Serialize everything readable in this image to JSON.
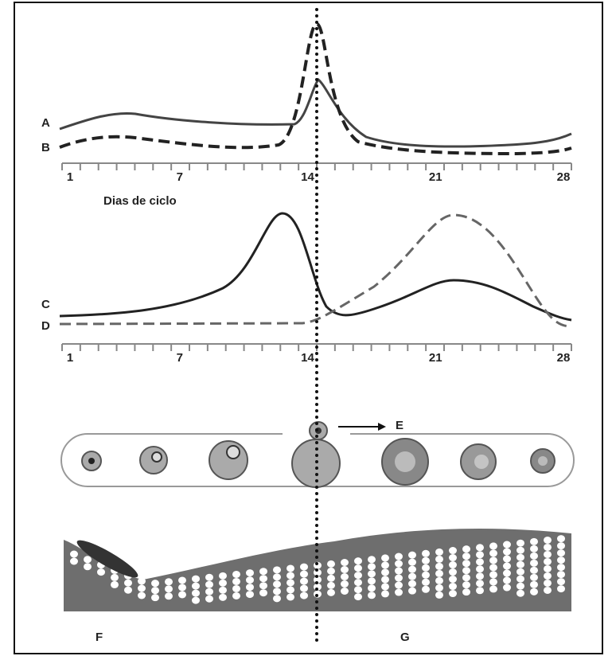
{
  "top_panel": {
    "labels": [
      "A",
      "B"
    ],
    "ticks": [
      1,
      7,
      14,
      21,
      28
    ],
    "axis_title": "Dias de ciclo"
  },
  "middle_panel": {
    "labels": [
      "C",
      "D"
    ],
    "ticks": [
      1,
      7,
      14,
      21,
      28
    ]
  },
  "ovary": {
    "label": "E"
  },
  "endometrium": {
    "labels": [
      "F",
      "G"
    ]
  }
}
